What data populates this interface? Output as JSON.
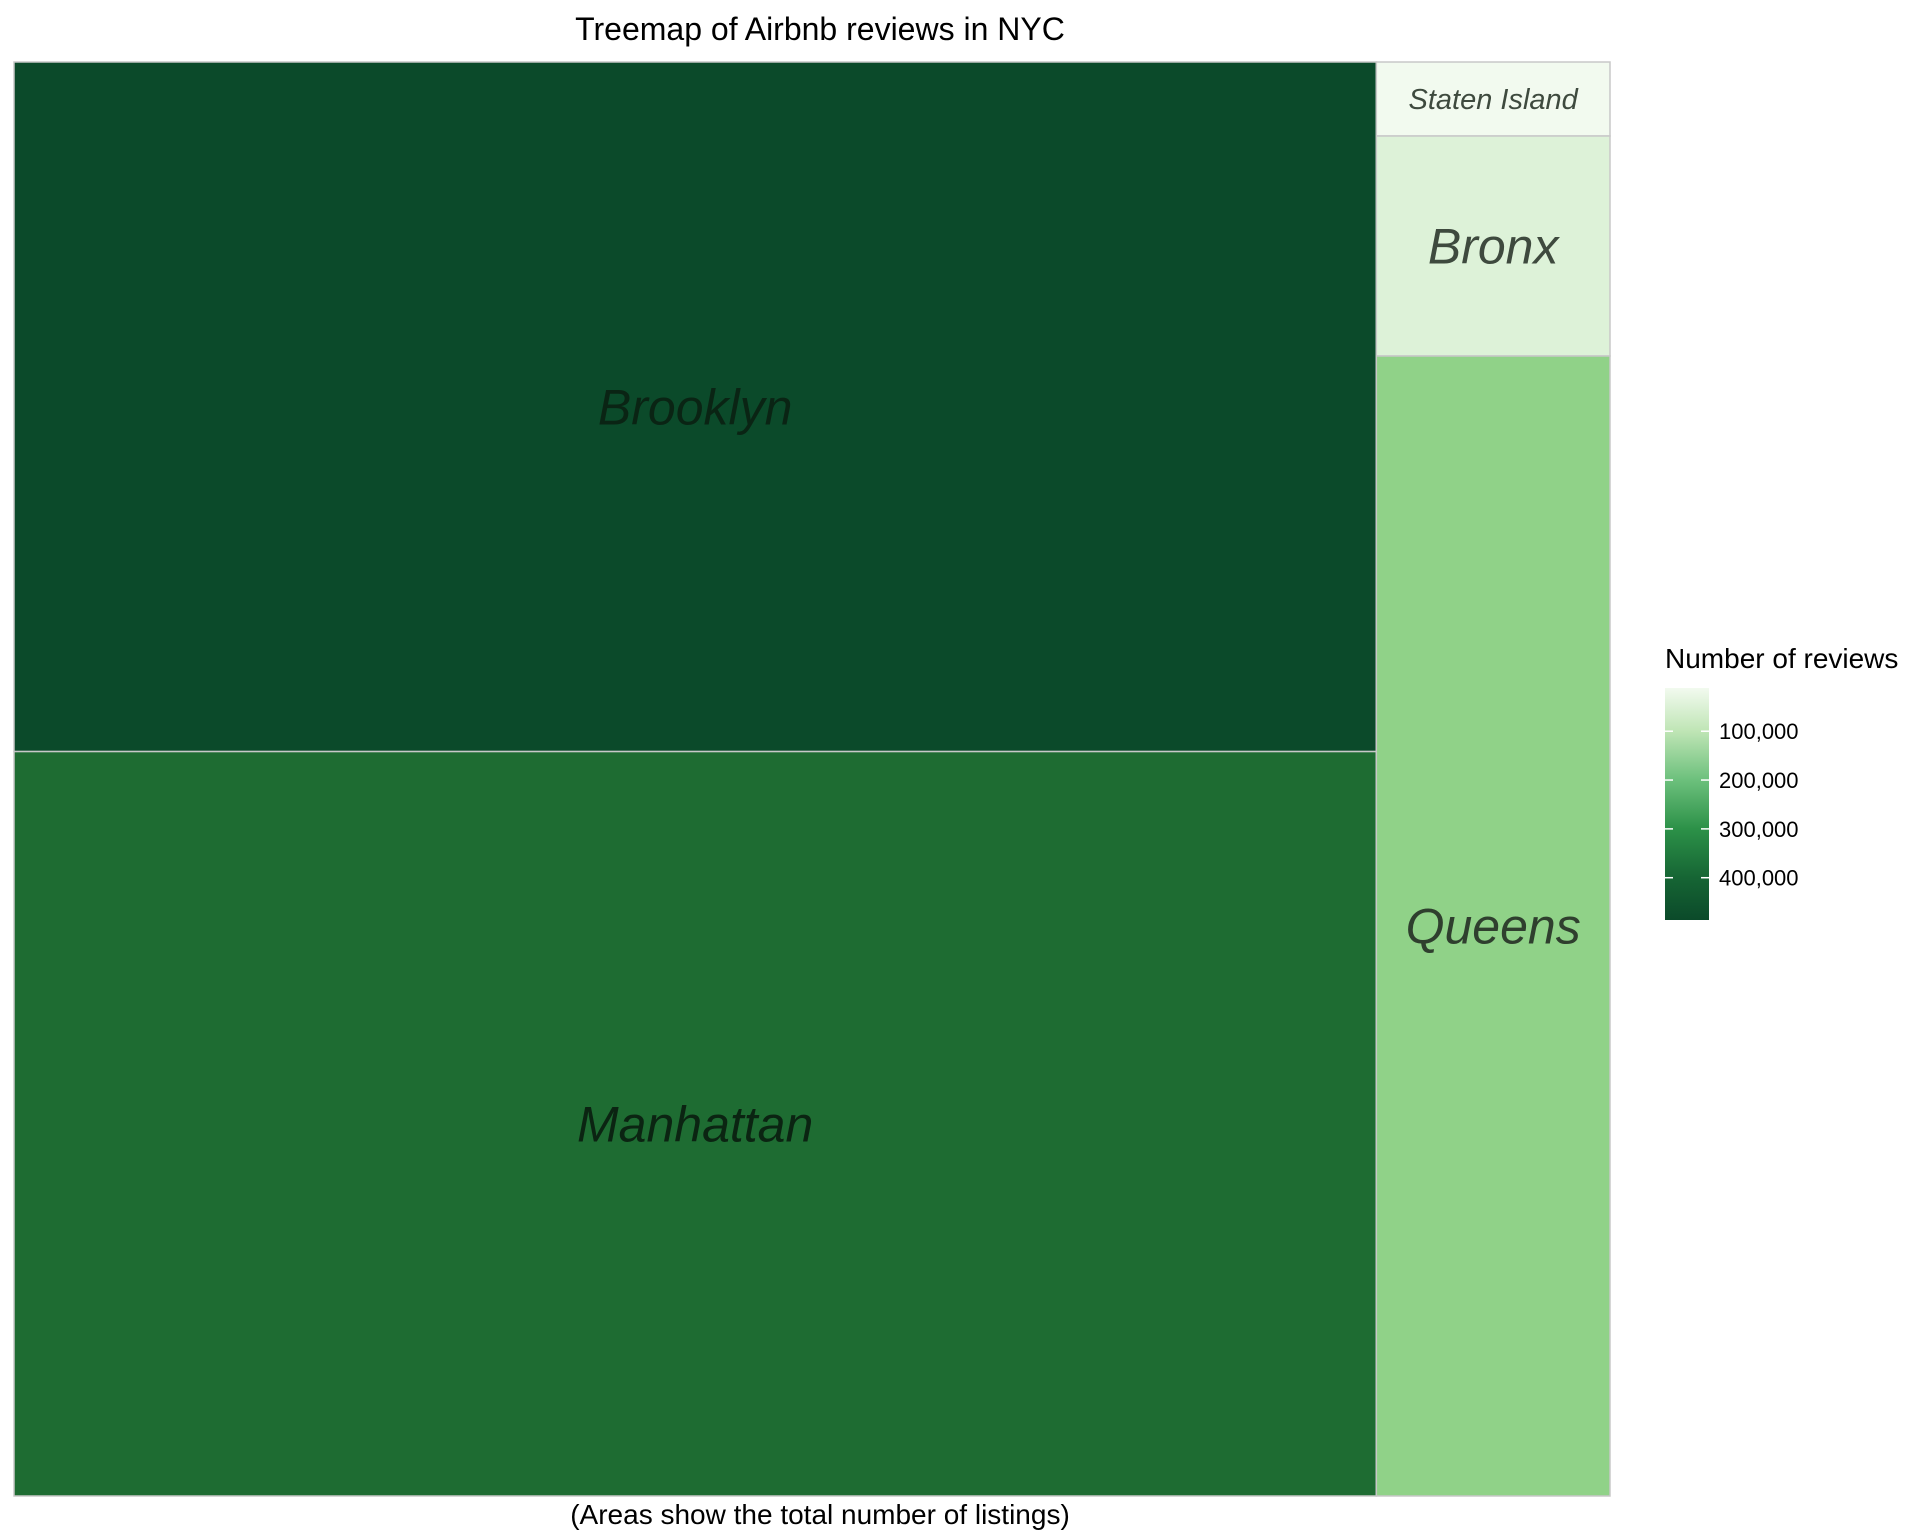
{
  "chart_data": {
    "type": "treemap",
    "title": "Treemap of Airbnb reviews in NYC",
    "caption": "(Areas show the total number of listings)",
    "area_variable": "Number of listings",
    "fill_variable": "Number of reviews",
    "tiles": [
      {
        "name": "Brooklyn",
        "listings": 20100,
        "reviews": 486600,
        "fill": "#0B4A2A",
        "label_color": "#0a2414"
      },
      {
        "name": "Manhattan",
        "listings": 21700,
        "reviews": 454600,
        "fill": "#1E6C32",
        "label_color": "#0b2412"
      },
      {
        "name": "Queens",
        "listings": 5700,
        "reviews": 156900,
        "fill": "#90D288",
        "label_color": "#2f3f2e"
      },
      {
        "name": "Bronx",
        "listings": 1100,
        "reviews": 28400,
        "fill": "#DDF2D8",
        "label_color": "#3e4a3e"
      },
      {
        "name": "Staten Island",
        "listings": 370,
        "reviews": 11500,
        "fill": "#F2FAEF",
        "label_color": "#3e4a3e"
      }
    ],
    "legend": {
      "title": "Number of reviews",
      "position": "right",
      "range": [
        11500,
        486600
      ],
      "breaks": [
        100000,
        200000,
        300000,
        400000
      ],
      "break_labels": [
        "100,000",
        "200,000",
        "300,000",
        "400,000"
      ],
      "gradient": [
        {
          "value": 11500,
          "color": "#F2FAEF"
        },
        {
          "value": 100000,
          "color": "#BFE5B5"
        },
        {
          "value": 200000,
          "color": "#6CC07C"
        },
        {
          "value": 300000,
          "color": "#2C9148"
        },
        {
          "value": 400000,
          "color": "#166534"
        },
        {
          "value": 486600,
          "color": "#0B4A2A"
        }
      ]
    }
  }
}
